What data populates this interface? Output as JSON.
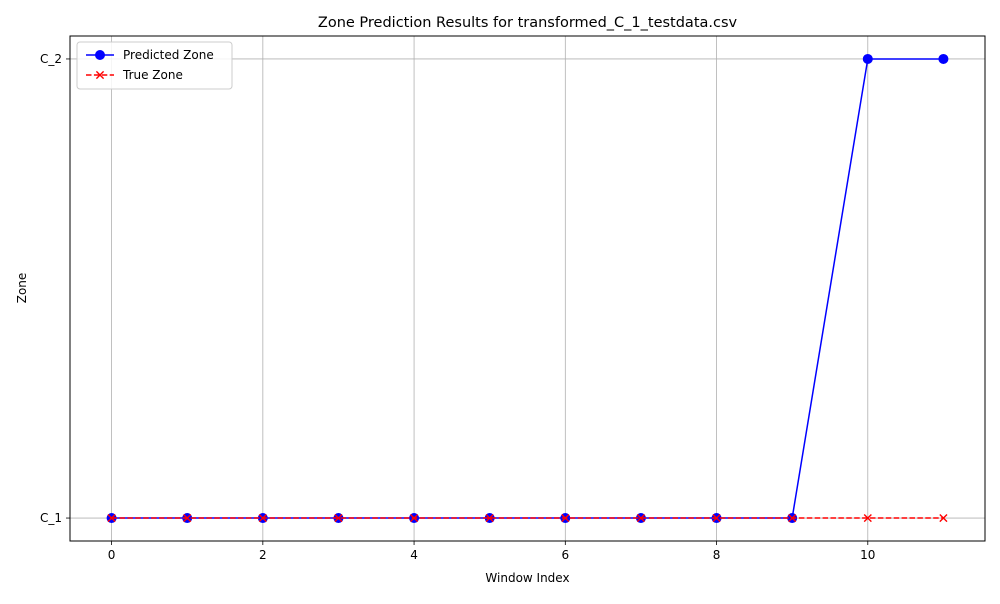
{
  "chart_data": {
    "type": "line",
    "title": "Zone Prediction Results for transformed_C_1_testdata.csv",
    "xlabel": "Window Index",
    "ylabel": "Zone",
    "x": [
      0,
      1,
      2,
      3,
      4,
      5,
      6,
      7,
      8,
      9,
      10,
      11
    ],
    "x_ticks": [
      0,
      2,
      4,
      6,
      8,
      10
    ],
    "xlim": [
      -0.55,
      11.55
    ],
    "y_categories": [
      "C_1",
      "C_2"
    ],
    "ylim": [
      -0.05,
      1.05
    ],
    "series": [
      {
        "name": "Predicted Zone",
        "values": [
          "C_1",
          "C_1",
          "C_1",
          "C_1",
          "C_1",
          "C_1",
          "C_1",
          "C_1",
          "C_1",
          "C_1",
          "C_2",
          "C_2"
        ],
        "color": "#0000ff",
        "marker": "circle",
        "line_style": "solid"
      },
      {
        "name": "True Zone",
        "values": [
          "C_1",
          "C_1",
          "C_1",
          "C_1",
          "C_1",
          "C_1",
          "C_1",
          "C_1",
          "C_1",
          "C_1",
          "C_1",
          "C_1"
        ],
        "color": "#ff0000",
        "marker": "x",
        "line_style": "dashed"
      }
    ],
    "grid": true,
    "legend_position": "top-left"
  }
}
